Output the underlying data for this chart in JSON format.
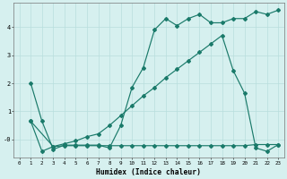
{
  "title": "",
  "xlabel": "Humidex (Indice chaleur)",
  "bg_color": "#d6f0ef",
  "line_color": "#1a7a6a",
  "grid_color": "#b8dedd",
  "xlim": [
    -0.5,
    23.5
  ],
  "ylim": [
    -0.65,
    4.85
  ],
  "xticks": [
    0,
    1,
    2,
    3,
    4,
    5,
    6,
    7,
    8,
    9,
    10,
    11,
    12,
    13,
    14,
    15,
    16,
    17,
    18,
    19,
    20,
    21,
    22,
    23
  ],
  "yticks": [
    0,
    1,
    2,
    3,
    4
  ],
  "ytick_labels": [
    "-0",
    "1",
    "2",
    "3",
    "4"
  ],
  "line1_x": [
    1,
    2,
    3,
    4,
    5,
    6,
    7,
    8,
    9,
    10,
    11,
    12,
    13,
    14,
    15,
    16,
    17,
    18,
    19,
    20,
    21,
    22,
    23
  ],
  "line1_y": [
    2.0,
    0.65,
    -0.35,
    -0.2,
    -0.2,
    -0.2,
    -0.2,
    -0.3,
    0.5,
    1.85,
    2.55,
    3.9,
    4.3,
    4.05,
    4.3,
    4.45,
    4.15,
    4.15,
    4.3,
    4.3,
    4.55,
    4.45,
    4.6
  ],
  "line2_x": [
    1,
    2,
    3,
    4,
    5,
    6,
    7,
    8,
    9,
    10,
    11,
    12,
    13,
    14,
    15,
    16,
    17,
    18,
    19,
    20,
    21,
    22,
    23
  ],
  "line2_y": [
    0.65,
    -0.42,
    -0.25,
    -0.22,
    -0.22,
    -0.22,
    -0.22,
    -0.22,
    -0.22,
    -0.22,
    -0.22,
    -0.22,
    -0.22,
    -0.22,
    -0.22,
    -0.22,
    -0.22,
    -0.22,
    -0.22,
    -0.22,
    -0.18,
    -0.18,
    -0.18
  ],
  "line3_x": [
    1,
    3,
    4,
    5,
    6,
    7,
    8,
    9,
    10,
    11,
    12,
    13,
    14,
    15,
    16,
    17,
    18,
    19,
    20,
    21,
    22,
    23
  ],
  "line3_y": [
    0.65,
    -0.25,
    -0.15,
    -0.05,
    0.1,
    0.2,
    0.5,
    0.85,
    1.2,
    1.55,
    1.85,
    2.2,
    2.5,
    2.8,
    3.1,
    3.4,
    3.7,
    2.45,
    1.65,
    -0.3,
    -0.42,
    -0.18
  ]
}
